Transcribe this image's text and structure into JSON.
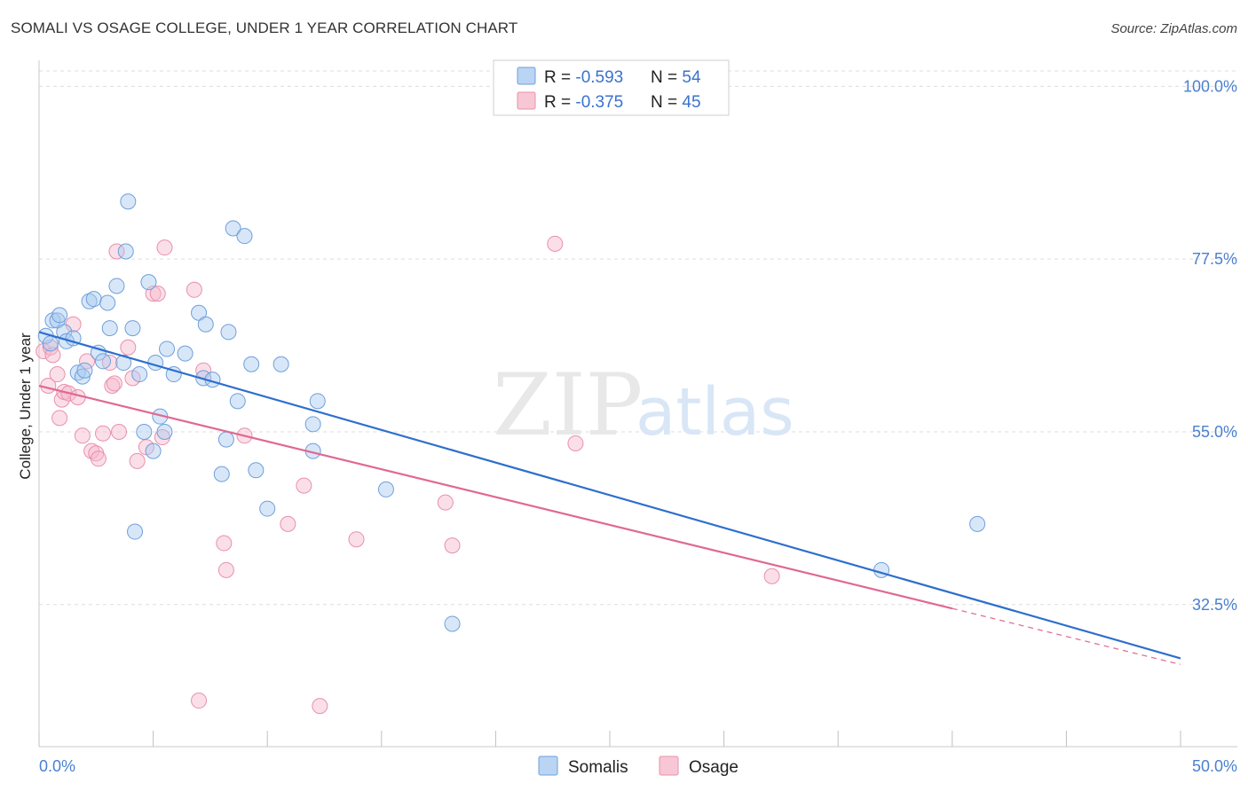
{
  "title": "SOMALI VS OSAGE COLLEGE, UNDER 1 YEAR CORRELATION CHART",
  "source": "Source: ZipAtlas.com",
  "watermark": {
    "zip": "ZIP",
    "atlas": "atlas"
  },
  "colors": {
    "somali_fill": "#a9c9f0",
    "somali_stroke": "#6f9fdc",
    "somali_line": "#2d6fcc",
    "osage_fill": "#f6b9cc",
    "osage_stroke": "#e890ac",
    "osage_line": "#e06892",
    "grid": "#dddddd",
    "tick_label": "#4a80d0"
  },
  "legend": {
    "rows": [
      {
        "r_label": "R = ",
        "r_value": "-0.593",
        "n_label": "N = ",
        "n_value": "54"
      },
      {
        "r_label": "R = ",
        "r_value": "-0.375",
        "n_label": "N = ",
        "n_value": "45"
      }
    ]
  },
  "chart_data": {
    "type": "scatter",
    "title": "SOMALI VS OSAGE COLLEGE, UNDER 1 YEAR CORRELATION CHART",
    "xlabel": "",
    "ylabel": "College, Under 1 year",
    "xlim": [
      0,
      50
    ],
    "ylim": [
      14,
      102
    ],
    "x_tick_labels": [
      "0.0%",
      "50.0%"
    ],
    "y_ticks": [
      32.5,
      55.0,
      77.5,
      100.0
    ],
    "y_tick_labels": [
      "32.5%",
      "55.0%",
      "77.5%",
      "100.0%"
    ],
    "grid": true,
    "series": [
      {
        "name": "Somalis",
        "r": -0.593,
        "n": 54,
        "trend": {
          "x0": 0,
          "y0": 68.0,
          "x1": 50,
          "y1": 25.5
        },
        "points": [
          [
            0.3,
            67.5
          ],
          [
            0.5,
            66.5
          ],
          [
            0.6,
            69.5
          ],
          [
            0.8,
            69.5
          ],
          [
            0.9,
            70.2
          ],
          [
            1.1,
            68.0
          ],
          [
            1.2,
            66.8
          ],
          [
            1.5,
            67.2
          ],
          [
            1.7,
            62.7
          ],
          [
            1.9,
            62.2
          ],
          [
            2.0,
            63.0
          ],
          [
            2.2,
            72.0
          ],
          [
            2.4,
            72.3
          ],
          [
            2.6,
            65.3
          ],
          [
            2.8,
            64.2
          ],
          [
            3.0,
            71.8
          ],
          [
            3.1,
            68.5
          ],
          [
            3.4,
            74.0
          ],
          [
            3.7,
            64.0
          ],
          [
            3.8,
            78.5
          ],
          [
            3.9,
            85.0
          ],
          [
            4.1,
            68.5
          ],
          [
            4.2,
            42.0
          ],
          [
            4.4,
            62.5
          ],
          [
            4.6,
            55.0
          ],
          [
            4.8,
            74.5
          ],
          [
            5.0,
            52.5
          ],
          [
            5.1,
            64.0
          ],
          [
            5.3,
            57.0
          ],
          [
            5.5,
            55.0
          ],
          [
            5.6,
            65.8
          ],
          [
            5.9,
            62.5
          ],
          [
            6.4,
            65.2
          ],
          [
            7.0,
            70.5
          ],
          [
            7.2,
            62.0
          ],
          [
            7.3,
            69.0
          ],
          [
            7.6,
            61.8
          ],
          [
            8.0,
            49.5
          ],
          [
            8.2,
            54.0
          ],
          [
            8.3,
            68.0
          ],
          [
            8.5,
            81.5
          ],
          [
            8.7,
            59.0
          ],
          [
            9.0,
            80.5
          ],
          [
            9.3,
            63.8
          ],
          [
            9.5,
            50.0
          ],
          [
            10.0,
            45.0
          ],
          [
            10.6,
            63.8
          ],
          [
            12.0,
            56.0
          ],
          [
            12.2,
            59.0
          ],
          [
            12.0,
            52.5
          ],
          [
            15.2,
            47.5
          ],
          [
            18.1,
            30.0
          ],
          [
            36.9,
            37.0
          ],
          [
            41.1,
            43.0
          ]
        ]
      },
      {
        "name": "Osage",
        "r": -0.375,
        "n": 45,
        "trend": {
          "x0": 0,
          "y0": 61.0,
          "x1": 40,
          "y1": 32.0
        },
        "trend_dashed": {
          "x0": 40,
          "y0": 32.0,
          "x1": 50,
          "y1": 24.7
        },
        "points": [
          [
            0.2,
            65.5
          ],
          [
            0.4,
            61.0
          ],
          [
            0.5,
            66.0
          ],
          [
            0.6,
            65.0
          ],
          [
            0.8,
            62.5
          ],
          [
            0.9,
            56.8
          ],
          [
            1.0,
            59.2
          ],
          [
            1.1,
            60.2
          ],
          [
            1.3,
            60.0
          ],
          [
            1.5,
            69.0
          ],
          [
            1.7,
            59.5
          ],
          [
            1.9,
            54.5
          ],
          [
            2.1,
            64.2
          ],
          [
            2.3,
            52.5
          ],
          [
            2.5,
            52.2
          ],
          [
            2.6,
            51.5
          ],
          [
            2.8,
            54.8
          ],
          [
            3.1,
            64.0
          ],
          [
            3.2,
            61.0
          ],
          [
            3.3,
            61.3
          ],
          [
            3.4,
            78.5
          ],
          [
            3.5,
            55.0
          ],
          [
            3.9,
            66.0
          ],
          [
            4.1,
            62.0
          ],
          [
            4.3,
            51.2
          ],
          [
            4.7,
            53.0
          ],
          [
            5.0,
            73.0
          ],
          [
            5.2,
            73.0
          ],
          [
            5.4,
            54.3
          ],
          [
            5.5,
            79.0
          ],
          [
            6.8,
            73.5
          ],
          [
            7.0,
            20.0
          ],
          [
            7.2,
            63.0
          ],
          [
            8.1,
            40.5
          ],
          [
            8.2,
            37.0
          ],
          [
            9.0,
            54.5
          ],
          [
            10.9,
            43.0
          ],
          [
            11.6,
            48.0
          ],
          [
            12.3,
            19.3
          ],
          [
            13.9,
            41.0
          ],
          [
            17.8,
            45.8
          ],
          [
            18.1,
            40.2
          ],
          [
            22.6,
            79.5
          ],
          [
            23.5,
            53.5
          ],
          [
            32.1,
            36.2
          ]
        ]
      }
    ]
  },
  "bottom_legend": [
    "Somalis",
    "Osage"
  ]
}
